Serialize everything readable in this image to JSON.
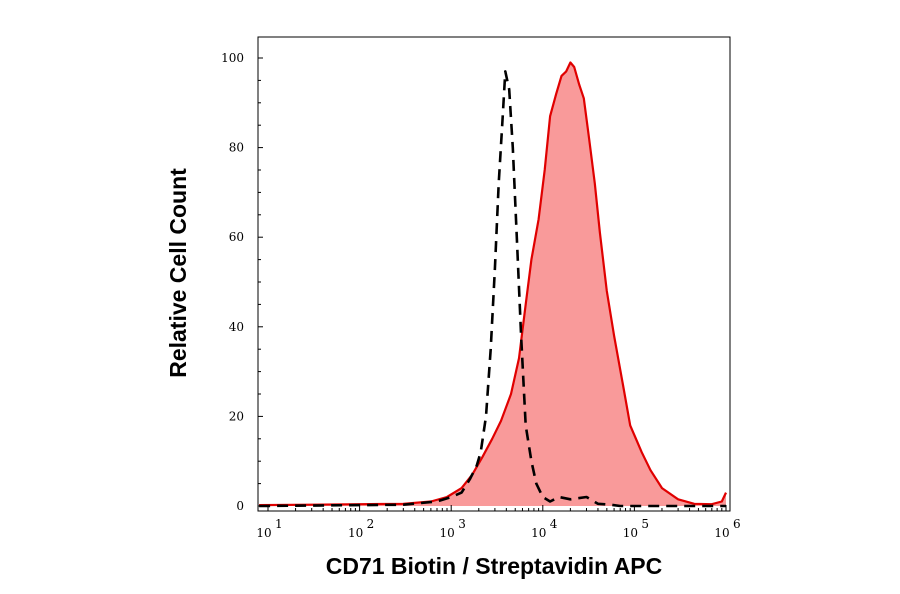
{
  "chart_data": {
    "type": "area",
    "xlabel": "CD71 Biotin / Streptavidin APC",
    "ylabel": "Relative Cell Count",
    "x_scale": "log",
    "xlim": [
      10,
      1000000
    ],
    "ylim": [
      0,
      104
    ],
    "x_ticks": [
      {
        "value": 10,
        "base": "10",
        "exp": "1"
      },
      {
        "value": 100,
        "base": "10",
        "exp": "2"
      },
      {
        "value": 1000,
        "base": "10",
        "exp": "3"
      },
      {
        "value": 10000,
        "base": "10",
        "exp": "4"
      },
      {
        "value": 100000,
        "base": "10",
        "exp": "5"
      },
      {
        "value": 1000000,
        "base": "10",
        "exp": "6"
      }
    ],
    "y_ticks": [
      {
        "value": 0,
        "label": "0"
      },
      {
        "value": 20,
        "label": "20"
      },
      {
        "value": 40,
        "label": "40"
      },
      {
        "value": 60,
        "label": "60"
      },
      {
        "value": 80,
        "label": "80"
      },
      {
        "value": 100,
        "label": "100"
      }
    ],
    "grid": false,
    "series": [
      {
        "style": "filled-solid",
        "color": "#e00000",
        "fill": "#f99a9a",
        "x": [
          8,
          30,
          100,
          300,
          600,
          900,
          1300,
          1700,
          2200,
          2800,
          3500,
          4500,
          5500,
          6500,
          7500,
          9000,
          10500,
          12000,
          14000,
          16000,
          18000,
          20000,
          22000,
          25000,
          28000,
          32000,
          37000,
          42000,
          50000,
          60000,
          75000,
          90000,
          120000,
          150000,
          200000,
          300000,
          450000,
          700000,
          900000,
          1000000
        ],
        "y": [
          0.2,
          0.3,
          0.4,
          0.5,
          1,
          2,
          4,
          7,
          11,
          15,
          19,
          25,
          33,
          45,
          55,
          64,
          75,
          87,
          92,
          96,
          97,
          99,
          98,
          94,
          91,
          82,
          72,
          61,
          48,
          38,
          27,
          18,
          12,
          8,
          4,
          1.5,
          0.5,
          0.4,
          1,
          3
        ]
      },
      {
        "style": "dashed",
        "color": "#000000",
        "x": [
          8,
          300,
          700,
          1000,
          1300,
          1600,
          1900,
          2100,
          2400,
          2700,
          3000,
          3300,
          3600,
          3900,
          4300,
          4700,
          5200,
          5800,
          6500,
          7500,
          8500,
          10000,
          12000,
          15000,
          20000,
          30000,
          40000,
          55000,
          70000,
          1000000
        ],
        "y": [
          0,
          0.3,
          1,
          2,
          3,
          6,
          9,
          12,
          20,
          35,
          53,
          72,
          85,
          97,
          93,
          80,
          60,
          38,
          18,
          10,
          5,
          2,
          1,
          2,
          1.5,
          2,
          0.5,
          0.3,
          0,
          0
        ]
      }
    ]
  }
}
